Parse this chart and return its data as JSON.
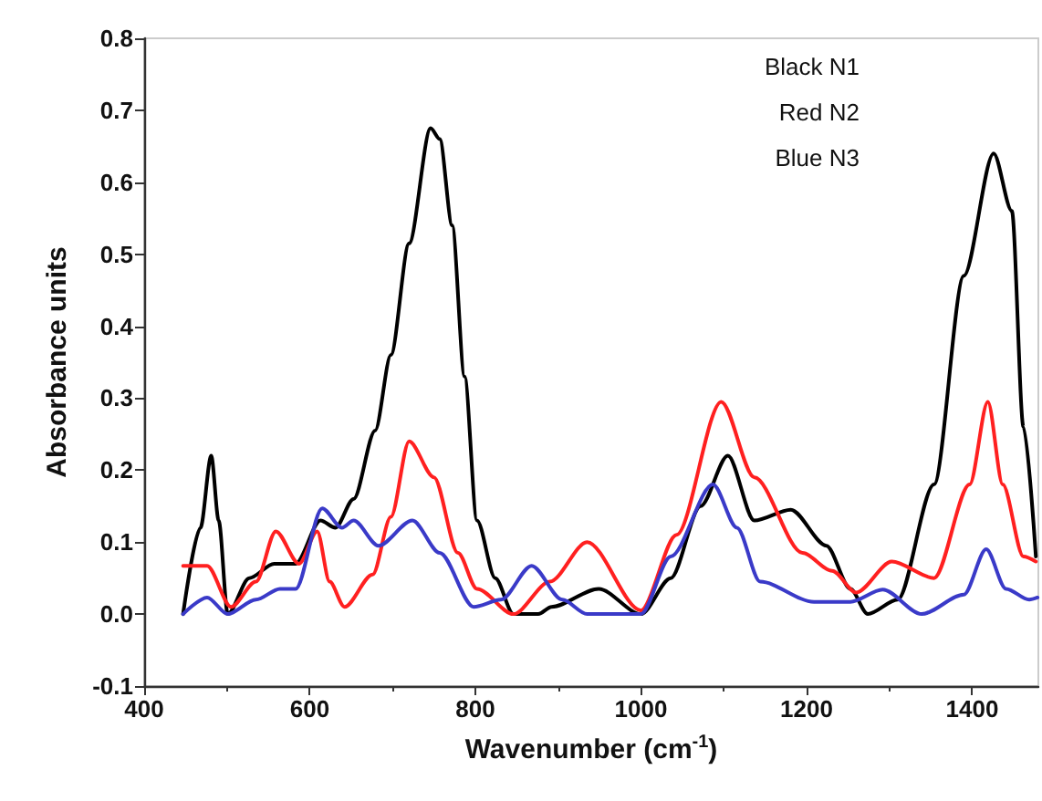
{
  "chart_data": {
    "type": "line",
    "xlabel": "Wavenumber (cm$^{-1}$)",
    "ylabel": "Absorbance units",
    "xlim": [
      400,
      1480
    ],
    "xticks": [
      400,
      600,
      800,
      1000,
      1200,
      1400
    ],
    "ylim": [
      -0.1,
      0.8
    ],
    "yticks": [
      -0.1,
      {
        "value": 0,
        "label": "0.0"
      },
      0.1,
      0.2,
      0.3,
      0.4,
      0.5,
      0.6,
      0.7,
      0.8
    ],
    "grid": false,
    "marker": "none",
    "line_style": "solid",
    "annotations": [
      "Black N1",
      "Red N2",
      "Blue N3"
    ],
    "series": [
      {
        "color": "#000000",
        "x": [
          447,
          468,
          481,
          490,
          501,
          527,
          557,
          583,
          613,
          631,
          653,
          679,
          698,
          720,
          746,
          757,
          772,
          787,
          802,
          824,
          846,
          876,
          892,
          949,
          1000,
          1036,
          1072,
          1105,
          1137,
          1181,
          1224,
          1253,
          1274,
          1310,
          1354,
          1390,
          1426,
          1448,
          1462,
          1477
        ],
        "values": [
          0,
          0.12,
          0.22,
          0.13,
          0,
          0.05,
          0.07,
          0.07,
          0.13,
          0.12,
          0.16,
          0.255,
          0.36,
          0.515,
          0.675,
          0.66,
          0.54,
          0.33,
          0.13,
          0.05,
          0,
          0,
          0.01,
          0.035,
          0,
          0.05,
          0.15,
          0.22,
          0.13,
          0.145,
          0.095,
          0.035,
          0,
          0.02,
          0.18,
          0.47,
          0.64,
          0.56,
          0.26,
          0.08
        ]
      },
      {
        "color": "#ff2020",
        "x": [
          447,
          476,
          505,
          535,
          559,
          587,
          609,
          624,
          642,
          676,
          698,
          720,
          750,
          779,
          802,
          846,
          890,
          935,
          1000,
          1043,
          1097,
          1137,
          1195,
          1231,
          1260,
          1303,
          1354,
          1397,
          1419,
          1437,
          1462,
          1477
        ],
        "values": [
          0.067,
          0.067,
          0.01,
          0.045,
          0.115,
          0.07,
          0.115,
          0.045,
          0.01,
          0.055,
          0.135,
          0.24,
          0.19,
          0.085,
          0.035,
          0,
          0.045,
          0.1,
          0.005,
          0.11,
          0.295,
          0.19,
          0.085,
          0.06,
          0.03,
          0.073,
          0.05,
          0.18,
          0.295,
          0.18,
          0.08,
          0.073
        ]
      },
      {
        "color": "#3a3ac8",
        "x": [
          447,
          476,
          501,
          535,
          564,
          583,
          615,
          639,
          653,
          683,
          724,
          757,
          798,
          831,
          868,
          905,
          935,
          1000,
          1036,
          1087,
          1116,
          1144,
          1209,
          1253,
          1292,
          1339,
          1390,
          1417,
          1441,
          1469,
          1479
        ],
        "values": [
          0,
          0.023,
          0,
          0.02,
          0.035,
          0.035,
          0.147,
          0.12,
          0.13,
          0.095,
          0.13,
          0.085,
          0.01,
          0.02,
          0.067,
          0.02,
          0,
          0,
          0.08,
          0.18,
          0.12,
          0.045,
          0.017,
          0.017,
          0.034,
          0,
          0.027,
          0.09,
          0.035,
          0.02,
          0.023
        ]
      }
    ]
  }
}
